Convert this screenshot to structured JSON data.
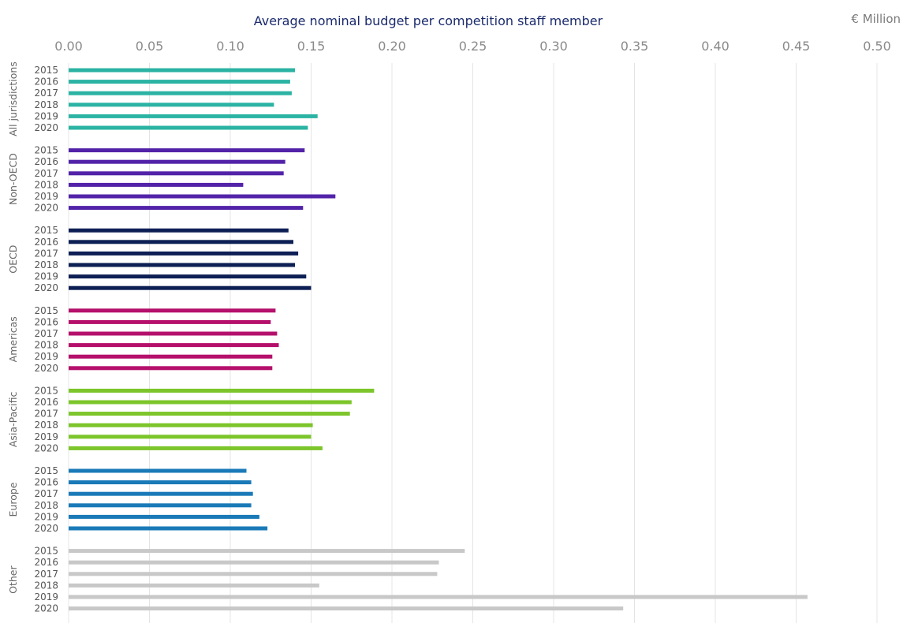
{
  "chart_data": {
    "type": "bar",
    "orientation": "horizontal",
    "title": "Average nominal budget per competition staff member",
    "unit_label": "€ Million",
    "xlim": [
      0,
      0.5
    ],
    "xticks": [
      "0.00",
      "0.05",
      "0.10",
      "0.15",
      "0.20",
      "0.25",
      "0.30",
      "0.35",
      "0.40",
      "0.45",
      "0.50"
    ],
    "grid": true,
    "legend": "none",
    "years": [
      "2015",
      "2016",
      "2017",
      "2018",
      "2019",
      "2020"
    ],
    "groups": [
      {
        "name": "All jurisdictions",
        "color": "#2bb3a3",
        "values": [
          0.14,
          0.137,
          0.138,
          0.127,
          0.154,
          0.148
        ]
      },
      {
        "name": "Non-OECD",
        "color": "#5223a8",
        "values": [
          0.146,
          0.134,
          0.133,
          0.108,
          0.165,
          0.145
        ]
      },
      {
        "name": "OECD",
        "color": "#0d1f54",
        "values": [
          0.136,
          0.139,
          0.142,
          0.14,
          0.147,
          0.15
        ]
      },
      {
        "name": "Americas",
        "color": "#b5106b",
        "values": [
          0.128,
          0.125,
          0.129,
          0.13,
          0.126,
          0.126
        ]
      },
      {
        "name": "Asia-Pacific",
        "color": "#7cc52a",
        "values": [
          0.189,
          0.175,
          0.174,
          0.151,
          0.15,
          0.157
        ]
      },
      {
        "name": "Europe",
        "color": "#1a7ab8",
        "values": [
          0.11,
          0.113,
          0.114,
          0.113,
          0.118,
          0.123
        ]
      },
      {
        "name": "Other",
        "color": "#c8c8c8",
        "values": [
          0.245,
          0.229,
          0.228,
          0.155,
          0.457,
          0.343
        ]
      }
    ]
  }
}
